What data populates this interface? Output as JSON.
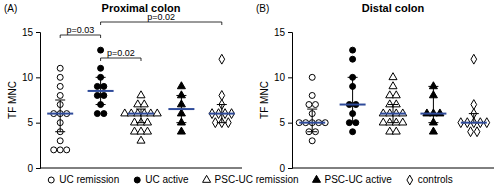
{
  "chart_data": [
    {
      "type": "scatter",
      "panel": "(A)",
      "title": "Proximal colon",
      "ylabel": "TF MNC",
      "ylim": [
        0,
        15
      ],
      "yticks": [
        0,
        5,
        10,
        15
      ],
      "tick_labels": "y",
      "legend": "bottom",
      "series": [
        {
          "name": "UC remission",
          "marker": "circle-open",
          "color": "#000000",
          "values": [
            11,
            10,
            9,
            8,
            7,
            6,
            6,
            6,
            5,
            4,
            3,
            2,
            2,
            2
          ],
          "median": 6,
          "iqr": [
            4,
            7.5
          ]
        },
        {
          "name": "UC active",
          "marker": "circle",
          "color": "#000000",
          "values": [
            13,
            11,
            10,
            9,
            9,
            8,
            8,
            7,
            6,
            6
          ],
          "median": 8.5,
          "iqr": [
            7,
            10
          ]
        },
        {
          "name": "PSC-UC remission",
          "marker": "triangle-open",
          "color": "#000000",
          "values": [
            8,
            7,
            7,
            6,
            6,
            6,
            6,
            6,
            6,
            5,
            5,
            5,
            4,
            4,
            4,
            3
          ],
          "median": 6,
          "iqr": [
            5,
            6.5
          ]
        },
        {
          "name": "PSC-UC active",
          "marker": "triangle",
          "color": "#000000",
          "values": [
            9,
            8,
            7,
            6,
            5,
            4
          ],
          "median": 6.5,
          "iqr": [
            5,
            8
          ]
        },
        {
          "name": "controls",
          "marker": "diamond-open",
          "color": "#000000",
          "values": [
            12,
            8,
            7,
            6,
            6,
            6,
            6,
            5,
            5,
            5
          ],
          "median": 6,
          "iqr": [
            5,
            7
          ]
        }
      ],
      "annotations": [
        {
          "text": "p=0.03",
          "groups": [
            0,
            1
          ]
        },
        {
          "text": "p=0.02",
          "groups": [
            1,
            2
          ]
        },
        {
          "text": "p=0.02",
          "groups": [
            1,
            4
          ]
        }
      ]
    },
    {
      "type": "scatter",
      "panel": "(B)",
      "title": "Distal colon",
      "ylabel": "TF MNC",
      "ylim": [
        0,
        15
      ],
      "yticks": [
        0,
        5,
        10,
        15
      ],
      "tick_labels": "y",
      "series": [
        {
          "marker": "circle-open",
          "color": "#000000",
          "values": [
            10,
            8,
            7,
            7,
            6,
            5,
            5,
            5,
            5,
            5,
            4,
            4,
            3
          ],
          "median": 5,
          "iqr": [
            4,
            6.5
          ]
        },
        {
          "marker": "circle",
          "color": "#000000",
          "values": [
            13,
            12,
            10,
            9,
            7,
            7,
            6,
            5,
            5,
            4
          ],
          "median": 7,
          "iqr": [
            5,
            10
          ]
        },
        {
          "marker": "triangle-open",
          "color": "#000000",
          "values": [
            10,
            9,
            8,
            8,
            7,
            7,
            6,
            6,
            6,
            6,
            5,
            5,
            5,
            5,
            4,
            4
          ],
          "median": 6,
          "iqr": [
            5,
            7
          ]
        },
        {
          "marker": "triangle",
          "color": "#000000",
          "values": [
            9,
            8,
            6,
            6,
            6,
            5,
            4
          ],
          "median": 6,
          "iqr": [
            5,
            9
          ]
        },
        {
          "marker": "diamond-open",
          "color": "#000000",
          "values": [
            12,
            7,
            6,
            5,
            5,
            5,
            5,
            5,
            4,
            4
          ],
          "median": 5,
          "iqr": [
            5,
            6
          ]
        }
      ]
    }
  ]
}
